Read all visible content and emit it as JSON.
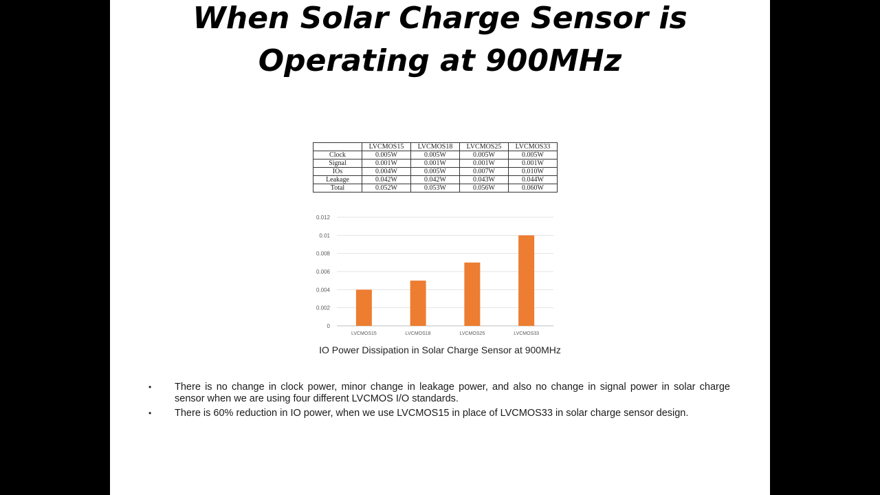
{
  "title_line1": "When Solar Charge Sensor is",
  "title_line2": "Operating at 900MHz",
  "table": {
    "headers": [
      "",
      "LVCMOS15",
      "LVCMOS18",
      "LVCMOS25",
      "LVCMOS33"
    ],
    "rows": [
      {
        "label": "Clock",
        "cells": [
          "0.005W",
          "0.005W",
          "0.005W",
          "0.005W"
        ]
      },
      {
        "label": "Signal",
        "cells": [
          "0.001W",
          "0.001W",
          "0.001W",
          "0.001W"
        ]
      },
      {
        "label": "IOs",
        "cells": [
          "0.004W",
          "0.005W",
          "0.007W",
          "0.010W"
        ]
      },
      {
        "label": "Leakage",
        "cells": [
          "0.042W",
          "0.042W",
          "0.043W",
          "0.044W"
        ]
      },
      {
        "label": "Total",
        "cells": [
          "0.052W",
          "0.053W",
          "0.056W",
          "0.060W"
        ]
      }
    ]
  },
  "chart_data": {
    "type": "bar",
    "categories": [
      "LVCMOS15",
      "LVCMOS18",
      "LVCMOS25",
      "LVCMOS33"
    ],
    "values": [
      0.004,
      0.005,
      0.007,
      0.01
    ],
    "ylim": [
      0,
      0.012
    ],
    "yticks": [
      "0",
      "0.002",
      "0.004",
      "0.006",
      "0.008",
      "0.01",
      "0.012"
    ],
    "grid": true,
    "bar_color": "#ed7d31",
    "title": "",
    "xlabel": "",
    "ylabel": ""
  },
  "caption": "IO Power Dissipation in Solar Charge Sensor at 900MHz",
  "bullets": [
    "There is no change in clock power, minor change in leakage power, and also no change in signal power in solar charge sensor when we are using four different LVCMOS I/O standards.",
    "There is 60% reduction in IO power, when we use LVCMOS15 in place of LVCMOS33 in solar charge sensor design."
  ],
  "bullet_glyph": "•"
}
